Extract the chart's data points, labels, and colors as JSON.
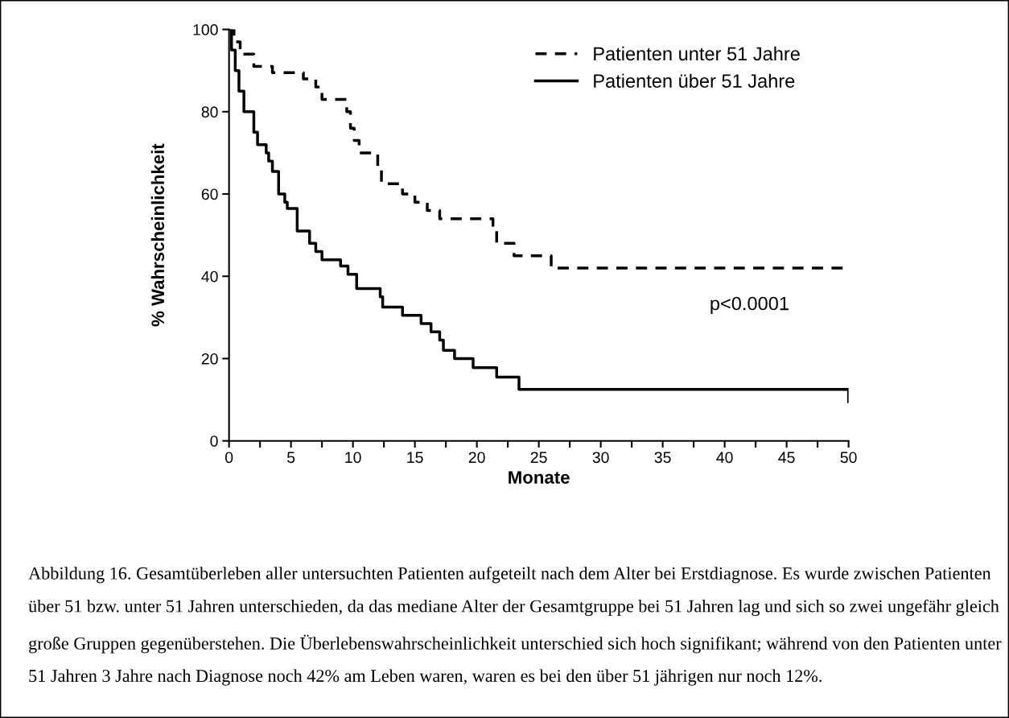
{
  "chart_data": {
    "type": "step",
    "xlabel": "Monate",
    "ylabel": "% Wahrscheinlichkeit",
    "xlim": [
      0,
      50
    ],
    "ylim": [
      0,
      100
    ],
    "xticks": [
      0,
      {
        "value": 2.5,
        "label": null
      },
      5,
      {
        "value": 7.5,
        "label": null
      },
      10,
      {
        "value": 12.5,
        "label": null
      },
      15,
      {
        "value": 17.5,
        "label": null
      },
      20,
      {
        "value": 22.5,
        "label": null
      },
      25,
      {
        "value": 27.5,
        "label": null
      },
      30,
      {
        "value": 32.5,
        "label": null
      },
      35,
      {
        "value": 37.5,
        "label": null
      },
      40,
      {
        "value": 42.5,
        "label": null
      },
      45,
      {
        "value": 47.5,
        "label": null
      },
      50
    ],
    "yticks": [
      0,
      20,
      40,
      60,
      80,
      100
    ],
    "grid": false,
    "legend": "top right",
    "series": [
      {
        "name": "Patienten unter 51 Jahre",
        "color": "#000000",
        "line_style": "dashed",
        "x": [
          0,
          0.4,
          0.9,
          2.0,
          3.5,
          6.0,
          7.0,
          7.5,
          9.5,
          9.8,
          10.1,
          10.5,
          12.0,
          12.3,
          14.0,
          15.0,
          16.0,
          17.0,
          21.3,
          21.6,
          23.0,
          26.0,
          50
        ],
        "values": [
          100,
          97,
          94,
          91,
          89.5,
          88,
          86,
          83,
          80,
          76,
          73,
          70,
          66,
          62.5,
          60,
          58,
          56,
          54,
          51,
          48,
          45,
          42,
          42
        ]
      },
      {
        "name": "Patienten über 51 Jahre",
        "color": "#000000",
        "line_style": "solid",
        "x": [
          0,
          0.2,
          0.5,
          0.8,
          1.2,
          2.0,
          2.3,
          3.0,
          3.2,
          3.5,
          4.0,
          4.5,
          4.7,
          5.5,
          6.5,
          7.0,
          7.5,
          9.0,
          9.6,
          10.3,
          12.2,
          12.4,
          14.0,
          15.5,
          16.3,
          17.0,
          17.3,
          18.2,
          19.7,
          21.6,
          23.4,
          50,
          50
        ],
        "values": [
          100,
          95,
          90,
          85,
          80,
          75,
          72,
          70,
          68,
          65.5,
          60,
          58,
          56.5,
          51,
          48,
          46,
          44,
          42.5,
          40.5,
          37,
          35,
          32.5,
          30.5,
          28.5,
          26.5,
          24.5,
          22,
          20,
          17.8,
          15.5,
          12.5,
          12.5,
          9.5
        ]
      }
    ],
    "annotations": [
      "p<0.0001",
      "Abbildung 16. Gesamtüberleben aller untersuchten Patienten aufgeteilt nach dem Alter bei Erstdiagnose. Es wurde zwischen Patienten über 51 bzw. unter 51 Jahren unterschieden, da das mediane Alter der Gesamtgruppe bei 51 Jahren lag und sich so zwei ungefähr gleich große Gruppen gegenüberstehen. Die Überlebenswahrscheinlichkeit unterschied sich hoch signifikant; während von den Patienten unter 51 Jahren 3 Jahre nach Diagnose noch 42% am Leben waren, waren es bei den über 51 jährigen nur noch 12%."
    ]
  }
}
